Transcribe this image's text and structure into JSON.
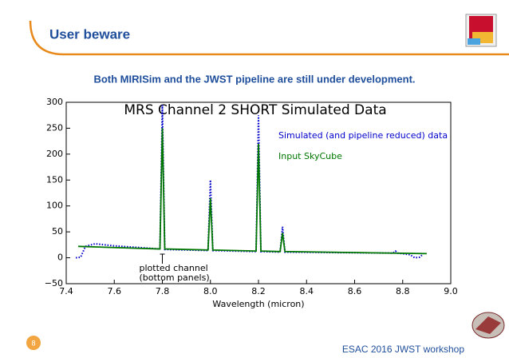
{
  "slide": {
    "title": "User beware",
    "subtitle": "Both MIRISim and the JWST pipeline are still under development.",
    "page_number": "8",
    "footer": "ESAC 2016 JWST workshop"
  },
  "chart_data": {
    "type": "line",
    "title": "MRS Channel 2 SHORT Simulated Data",
    "x_label": "Wavelength (micron)",
    "annotation": [
      "plotted channel",
      "(bottom panels)"
    ],
    "annotation_x": 7.8,
    "xlim": [
      7.4,
      9.0
    ],
    "ylim": [
      -50,
      300
    ],
    "xticks": [
      7.4,
      7.6,
      7.8,
      {
        "value": 8,
        "label": "8.0"
      },
      8.2,
      8.4,
      8.6,
      8.8,
      {
        "value": 9,
        "label": "9.0"
      }
    ],
    "yticks": [
      {
        "value": -50,
        "label": "−50"
      },
      0,
      50,
      100,
      150,
      200,
      250,
      300
    ],
    "series": [
      {
        "name": "Simulated (and pipeline reduced) data",
        "color": "#0000cc",
        "style": "dotted",
        "x": [
          7.44,
          7.46,
          7.48,
          7.52,
          7.6,
          7.79,
          7.8,
          7.81,
          7.99,
          8.0,
          8.01,
          8.19,
          8.2,
          8.21,
          8.29,
          8.3,
          8.31,
          8.76,
          8.77,
          8.78,
          8.83,
          8.85,
          8.87,
          8.88
        ],
        "values": [
          0,
          1,
          22,
          27,
          23,
          17,
          295,
          16,
          14,
          150,
          14,
          12,
          275,
          12,
          11,
          60,
          11,
          9,
          13,
          9,
          6,
          0,
          1,
          5
        ]
      },
      {
        "name": "Input SkyCube",
        "color": "#007700",
        "style": "solid",
        "x": [
          7.45,
          7.79,
          7.8,
          7.81,
          7.99,
          8.0,
          8.01,
          8.19,
          8.2,
          8.21,
          8.29,
          8.3,
          8.31,
          8.9
        ],
        "values": [
          22,
          17,
          250,
          17,
          15,
          115,
          15,
          13,
          220,
          13,
          12,
          48,
          12,
          8
        ]
      }
    ]
  }
}
